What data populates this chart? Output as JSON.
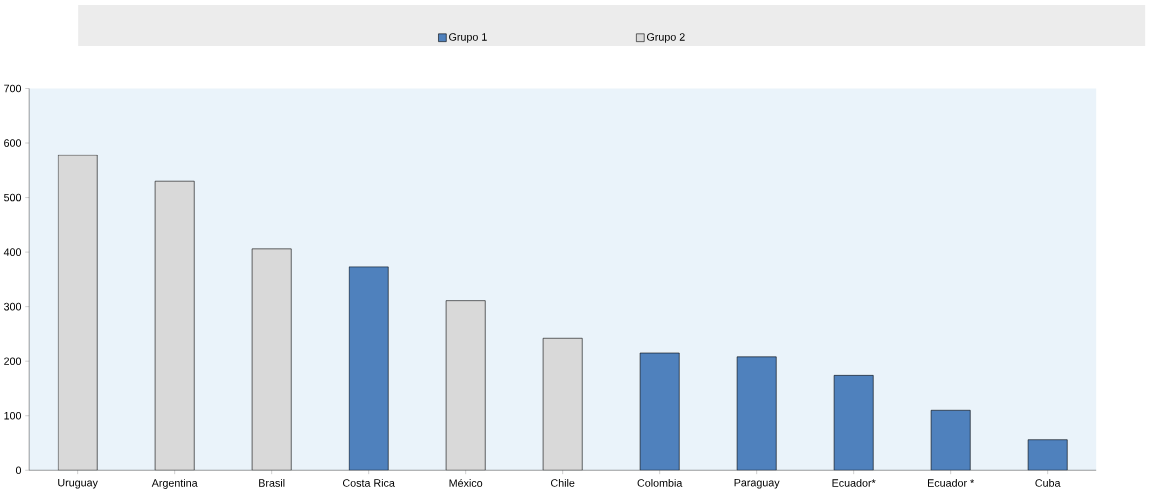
{
  "chart_data": {
    "type": "bar",
    "categories": [
      "Uruguay",
      "Argentina",
      "Brasil",
      "Costa Rica",
      "México",
      "Chile",
      "Colombia",
      "Paraguay",
      "Ecuador*",
      "Ecuador *",
      "Cuba"
    ],
    "series": [
      {
        "name": "Grupo 1",
        "color": "#4f81bd",
        "values": [
          null,
          null,
          null,
          373,
          null,
          null,
          215,
          208,
          174,
          110,
          56
        ]
      },
      {
        "name": "Grupo 2",
        "color": "#d9d9d9",
        "values": [
          578,
          530,
          406,
          null,
          311,
          242,
          null,
          null,
          null,
          null,
          null
        ]
      }
    ],
    "ylim": [
      0,
      700
    ],
    "yticks": [
      0,
      100,
      200,
      300,
      400,
      500,
      600,
      700
    ],
    "legend": "top",
    "grid": false
  }
}
